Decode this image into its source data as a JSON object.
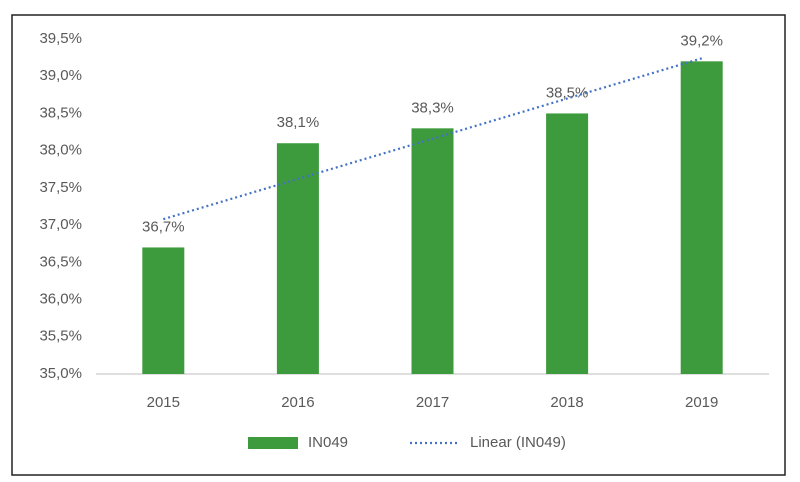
{
  "chart_data": {
    "type": "bar",
    "categories": [
      "2015",
      "2016",
      "2017",
      "2018",
      "2019"
    ],
    "series": [
      {
        "name": "IN049",
        "color": "#3d9b3d",
        "values": [
          36.7,
          38.1,
          38.3,
          38.5,
          39.2
        ],
        "value_labels": [
          "36,7%",
          "38,1%",
          "38,3%",
          "38,5%",
          "39,2%"
        ]
      }
    ],
    "trendline": {
      "name": "Linear (IN049)",
      "kind": "linear",
      "color": "#4472c4"
    },
    "ylim": [
      35,
      39.5
    ],
    "yticks": [
      {
        "value": 35,
        "label": "35,0%"
      },
      {
        "value": 35.5,
        "label": "35,5%"
      },
      {
        "value": 36,
        "label": "36,0%"
      },
      {
        "value": 36.5,
        "label": "36,5%"
      },
      {
        "value": 37,
        "label": "37,0%"
      },
      {
        "value": 37.5,
        "label": "37,5%"
      },
      {
        "value": 38,
        "label": "38,0%"
      },
      {
        "value": 38.5,
        "label": "38,5%"
      },
      {
        "value": 39,
        "label": "39,0%"
      },
      {
        "value": 39.5,
        "label": "39,5%"
      }
    ],
    "grid": false,
    "legend": "bottom"
  }
}
